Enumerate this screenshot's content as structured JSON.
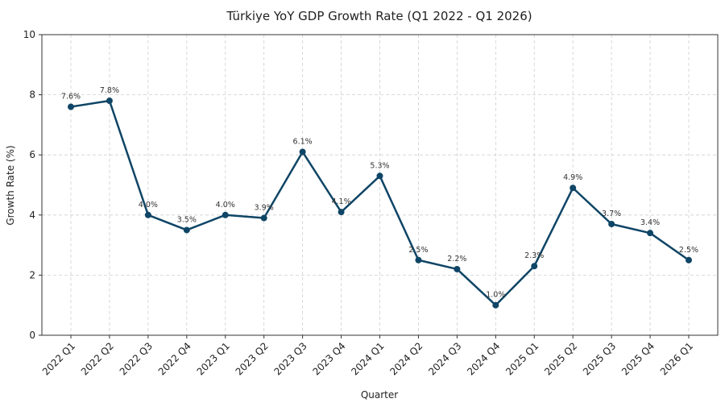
{
  "chart_data": {
    "type": "line",
    "title": "Türkiye YoY GDP Growth Rate (Q1 2022 - Q1 2026)",
    "xlabel": "Quarter",
    "ylabel": "Growth Rate (%)",
    "ylim": [
      0,
      10
    ],
    "yticks": [
      "0",
      "2",
      "4",
      "6",
      "8",
      "10"
    ],
    "grid": true,
    "line_color": "#0f4566",
    "categories": [
      "2022 Q1",
      "2022 Q2",
      "2022 Q3",
      "2022 Q4",
      "2023 Q1",
      "2023 Q2",
      "2023 Q3",
      "2023 Q4",
      "2024 Q1",
      "2024 Q2",
      "2024 Q3",
      "2024 Q4",
      "2025 Q1",
      "2025 Q2",
      "2025 Q3",
      "2025 Q4",
      "2026 Q1"
    ],
    "values": [
      7.6,
      7.8,
      4.0,
      3.5,
      4.0,
      3.9,
      6.1,
      4.1,
      5.3,
      2.5,
      2.2,
      1.0,
      2.3,
      4.9,
      3.7,
      3.4,
      2.5
    ],
    "data_labels": [
      "7.6%",
      "7.8%",
      "4.0%",
      "3.5%",
      "4.0%",
      "3.9%",
      "6.1%",
      "4.1%",
      "5.3%",
      "2.5%",
      "2.2%",
      "1.0%",
      "2.3%",
      "4.9%",
      "3.7%",
      "3.4%",
      "2.5%"
    ]
  }
}
